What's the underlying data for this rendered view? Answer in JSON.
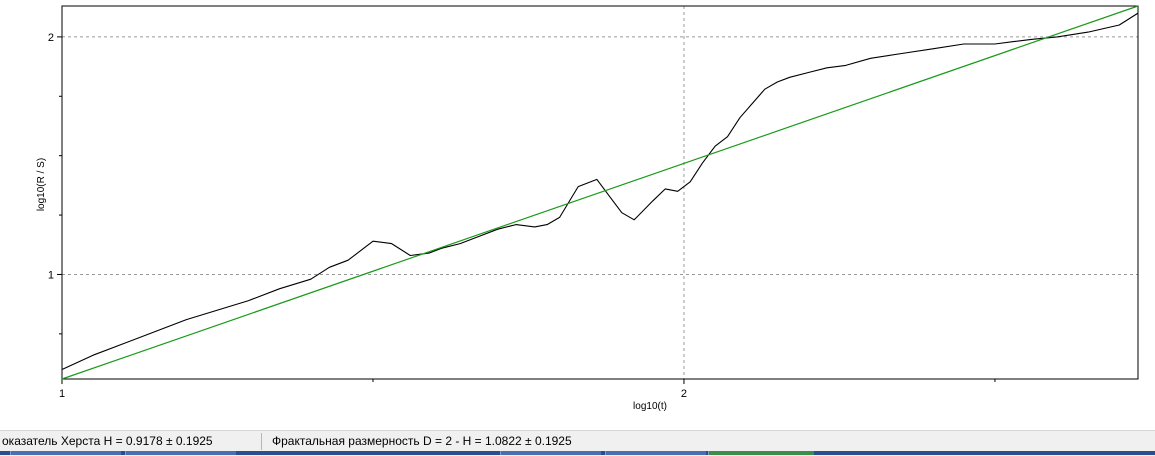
{
  "chart_data": {
    "type": "line",
    "title": "",
    "xlabel": "log10(t)",
    "ylabel": "log10(R / S)",
    "xlim": [
      1,
      2.73
    ],
    "ylim": [
      0.56,
      2.13
    ],
    "x_ticks": [
      1,
      2
    ],
    "y_ticks": [
      1,
      2
    ],
    "grid": "dashed at major ticks",
    "series": [
      {
        "style": "data",
        "color": "#000000",
        "x": [
          1.0,
          1.05,
          1.1,
          1.15,
          1.2,
          1.25,
          1.3,
          1.35,
          1.4,
          1.43,
          1.46,
          1.5,
          1.53,
          1.56,
          1.59,
          1.61,
          1.64,
          1.67,
          1.7,
          1.73,
          1.76,
          1.78,
          1.8,
          1.83,
          1.86,
          1.88,
          1.9,
          1.92,
          1.95,
          1.97,
          1.99,
          2.01,
          2.03,
          2.05,
          2.07,
          2.09,
          2.11,
          2.13,
          2.15,
          2.17,
          2.2,
          2.23,
          2.26,
          2.3,
          2.35,
          2.4,
          2.45,
          2.5,
          2.53,
          2.56,
          2.6,
          2.65,
          2.7,
          2.73
        ],
        "y": [
          0.6,
          0.66,
          0.71,
          0.76,
          0.81,
          0.85,
          0.89,
          0.94,
          0.98,
          1.03,
          1.06,
          1.14,
          1.13,
          1.08,
          1.09,
          1.11,
          1.13,
          1.16,
          1.19,
          1.21,
          1.2,
          1.21,
          1.24,
          1.37,
          1.4,
          1.33,
          1.26,
          1.23,
          1.31,
          1.36,
          1.35,
          1.39,
          1.47,
          1.54,
          1.58,
          1.66,
          1.72,
          1.78,
          1.81,
          1.83,
          1.85,
          1.87,
          1.88,
          1.91,
          1.93,
          1.95,
          1.97,
          1.97,
          1.98,
          1.99,
          2.0,
          2.02,
          2.05,
          2.1
        ]
      },
      {
        "style": "fit",
        "color": "#1a9a1a",
        "x": [
          1.0,
          2.73
        ],
        "y": [
          0.56,
          2.13
        ]
      }
    ]
  },
  "status": {
    "hurst": "оказатель Херста H = 0.9178 ± 0.1925",
    "fractal": "Фрактальная размерность D = 2 - H = 1.0822 ± 0.1925"
  }
}
